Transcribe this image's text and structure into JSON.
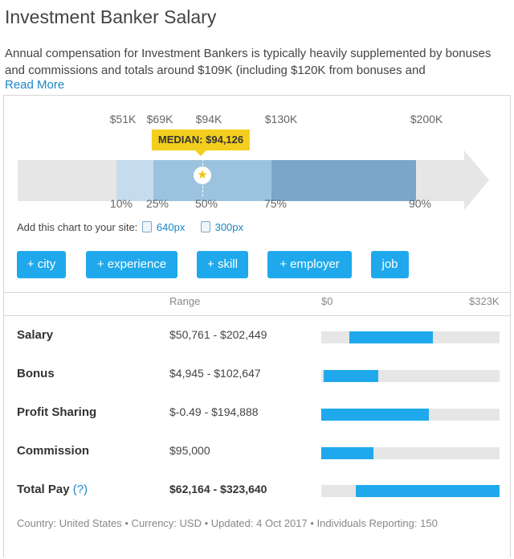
{
  "header": {
    "title": "Investment Banker Salary",
    "description": "Annual compensation for Investment Bankers is typically heavily supplemented by bonuses and commissions and totals around $109K (including $120K from bonuses and",
    "read_more": "Read More"
  },
  "chart": {
    "top_labels": [
      "$51K",
      "$69K",
      "$94K",
      "$130K",
      "$200K"
    ],
    "percentile_labels": [
      "10%",
      "25%",
      "50%",
      "75%",
      "90%"
    ],
    "median_label": "MEDIAN: $94,126",
    "median_icon": "star-icon"
  },
  "embed": {
    "label": "Add this chart to your site:",
    "link_640": "640px",
    "link_300": "300px"
  },
  "filters": {
    "city": "+ city",
    "experience": "+ experience",
    "skill": "+ skill",
    "employer": "+ employer",
    "job": "job"
  },
  "table": {
    "range_header": "Range",
    "scale_min": "$0",
    "scale_max": "$323K",
    "scale_max_value": 323,
    "rows": [
      {
        "label": "Salary",
        "range": "$50,761 - $202,449",
        "bar_start": 0.157,
        "bar_end": 0.627
      },
      {
        "label": "Bonus",
        "range": "$4,945 - $102,647",
        "bar_start": 0.015,
        "bar_end": 0.318
      },
      {
        "label": "Profit Sharing",
        "range": "$-0.49 - $194,888",
        "bar_start": 0.0,
        "bar_end": 0.603
      },
      {
        "label": "Commission",
        "range": "$95,000",
        "bar_start": 0.0,
        "bar_end": 0.294
      },
      {
        "label": "Total Pay",
        "help": "(?)",
        "range": "$62,164 - $323,640",
        "bar_start": 0.192,
        "bar_end": 1.0
      }
    ]
  },
  "footer": {
    "text": "Country: United States • Currency: USD • Updated: 4 Oct 2017 • Individuals Reporting: 150"
  },
  "colors": {
    "accent": "#1fa9ec",
    "link": "#1b86c7",
    "median": "#f4ce1e",
    "band_outer": "#c5dcee",
    "band_middle": "#9bc3df",
    "band_inner": "#7aa7c9",
    "track": "#e6e6e6"
  }
}
